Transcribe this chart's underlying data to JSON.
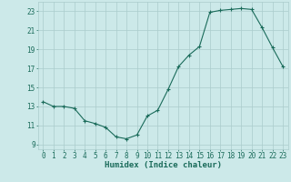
{
  "x": [
    0,
    1,
    2,
    3,
    4,
    5,
    6,
    7,
    8,
    9,
    10,
    11,
    12,
    13,
    14,
    15,
    16,
    17,
    18,
    19,
    20,
    21,
    22,
    23
  ],
  "y": [
    13.5,
    13.0,
    13.0,
    12.8,
    11.5,
    11.2,
    10.8,
    9.8,
    9.6,
    10.0,
    12.0,
    12.6,
    14.8,
    17.2,
    18.4,
    19.3,
    22.9,
    23.1,
    23.2,
    23.3,
    23.2,
    21.3,
    19.2,
    17.2
  ],
  "xlabel": "Humidex (Indice chaleur)",
  "xlim": [
    -0.5,
    23.5
  ],
  "ylim": [
    8.5,
    24.0
  ],
  "yticks": [
    9,
    11,
    13,
    15,
    17,
    19,
    21,
    23
  ],
  "xticks": [
    0,
    1,
    2,
    3,
    4,
    5,
    6,
    7,
    8,
    9,
    10,
    11,
    12,
    13,
    14,
    15,
    16,
    17,
    18,
    19,
    20,
    21,
    22,
    23
  ],
  "line_color": "#1a6b5a",
  "marker": "+",
  "marker_size": 3,
  "marker_lw": 0.8,
  "line_width": 0.8,
  "bg_color": "#cce9e9",
  "grid_color": "#aacccc",
  "tick_label_fontsize": 5.5,
  "xlabel_fontsize": 6.5,
  "xlabel_color": "#1a6b5a"
}
